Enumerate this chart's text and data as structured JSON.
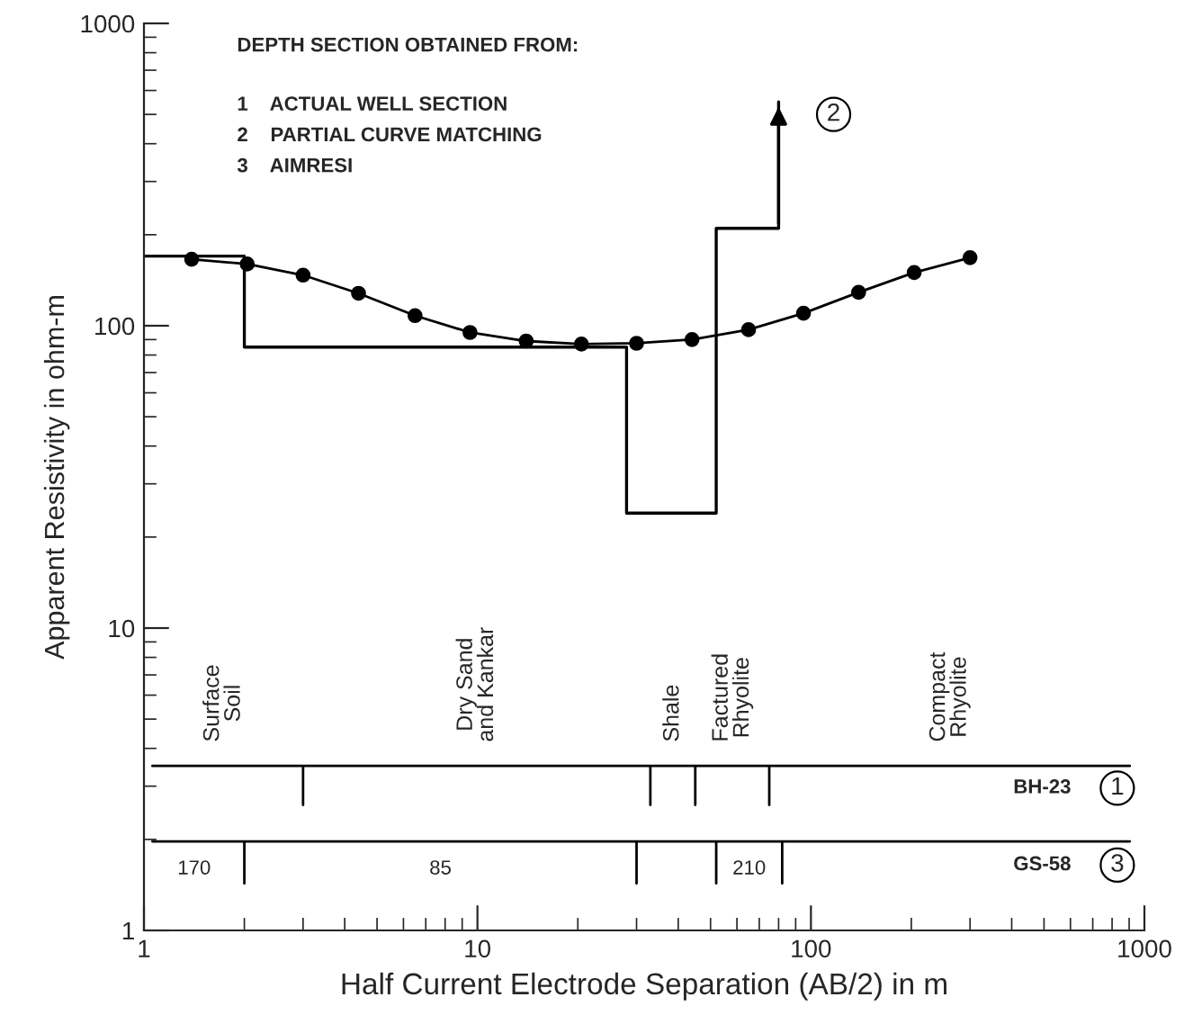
{
  "chart_data": {
    "type": "line",
    "xlabel": "Half Current Electrode Separation (AB/2) in m",
    "ylabel": "Apparent Resistivity in ohm-m",
    "log": "xy",
    "xlim": [
      1,
      1000
    ],
    "ylim": [
      1,
      1000
    ],
    "xticks": [
      1,
      10,
      100,
      1000
    ],
    "yticks": [
      1,
      10,
      100,
      1000
    ],
    "grid": false,
    "legend": "bottom right",
    "series": [
      {
        "color": "#000000",
        "marker": "circle",
        "x": [
          1.39,
          2.04,
          3,
          4.4,
          6.5,
          9.5,
          14,
          20.5,
          30,
          44,
          65,
          95,
          139,
          204,
          300
        ],
        "values": [
          166,
          160,
          147,
          128,
          108,
          95,
          89,
          87,
          87.5,
          90,
          97,
          110,
          129,
          150,
          168
        ]
      },
      {
        "type": "step",
        "color": "#000000",
        "marker": "none",
        "x": [
          1,
          2,
          28,
          52,
          80,
          80
        ],
        "values": [
          170,
          85,
          24,
          210,
          210,
          550
        ]
      },
      {
        "type": "line",
        "name": "BH-23",
        "color": "#000000",
        "marker": "none",
        "x": [
          1.06,
          3,
          3,
          3,
          33,
          33,
          33,
          45,
          45,
          45,
          75,
          75,
          75,
          904
        ],
        "values": [
          3.5,
          3.5,
          2.6,
          3.5,
          3.5,
          2.6,
          3.5,
          3.5,
          2.6,
          3.5,
          3.5,
          2.6,
          3.5,
          3.5
        ]
      },
      {
        "type": "line",
        "name": "GS-58",
        "color": "#000000",
        "marker": "none",
        "x": [
          1.06,
          2,
          2,
          2,
          30,
          30,
          30,
          52,
          52,
          52,
          82,
          82,
          82,
          904
        ],
        "values": [
          1.97,
          1.97,
          1.43,
          1.97,
          1.97,
          1.43,
          1.97,
          1.97,
          1.43,
          1.97,
          1.97,
          1.43,
          1.97,
          1.97
        ]
      }
    ],
    "annotations": [
      "DEPTH SECTION OBTAINED FROM:",
      "1    ACTUAL WELL SECTION",
      "2    PARTIAL CURVE MATCHING",
      "3    AIMRESI",
      "Surface\nSoil",
      "Dry Sand\nand Kankar",
      "Shale",
      "Factured\nRhyolite",
      "Compact\nRhyolite",
      "170",
      "85",
      "210",
      {
        "text": "2",
        "x": 80,
        "y": 550
      },
      "1",
      "3"
    ]
  }
}
